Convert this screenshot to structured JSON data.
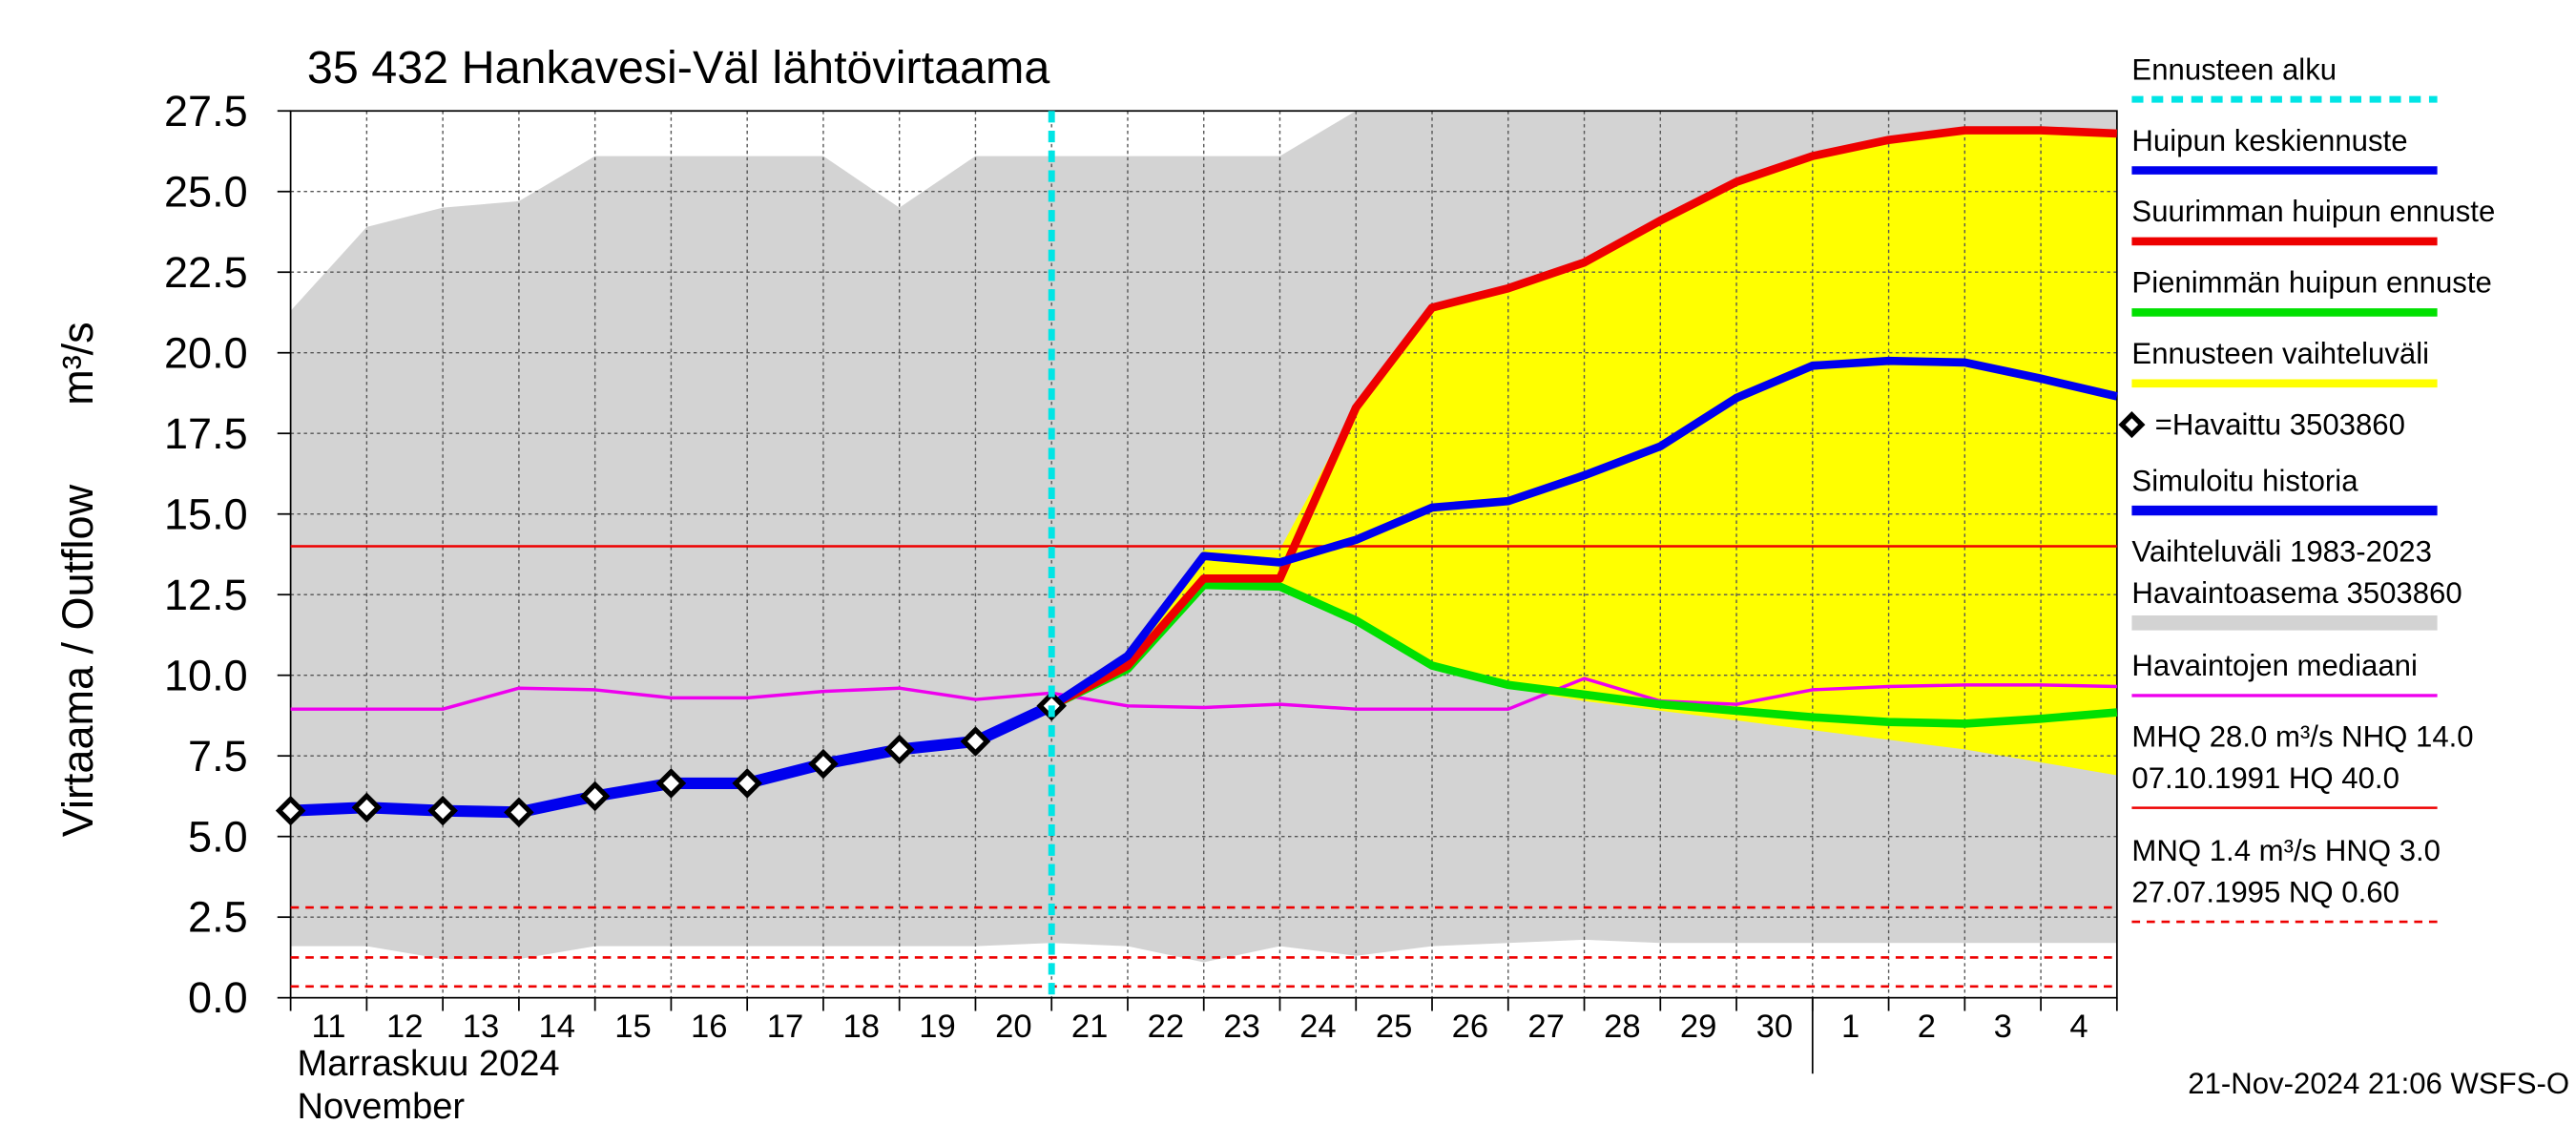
{
  "chart_data": {
    "type": "line",
    "title": "35 432 Hankavesi-Väl lähtövirtaama",
    "ylabel": "Virtaama / Outflow",
    "yunit": "m³/s",
    "month_label": "Marraskuu 2024",
    "month_label_en": "November",
    "footer": "21-Nov-2024 21:06 WSFS-O",
    "categories": [
      "11",
      "12",
      "13",
      "14",
      "15",
      "16",
      "17",
      "18",
      "19",
      "20",
      "21",
      "22",
      "23",
      "24",
      "25",
      "26",
      "27",
      "28",
      "29",
      "30",
      "1",
      "2",
      "3",
      "4"
    ],
    "x": [
      0,
      1,
      2,
      3,
      4,
      5,
      6,
      7,
      8,
      9,
      10,
      11,
      12,
      13,
      14,
      15,
      16,
      17,
      18,
      19,
      20,
      21,
      22,
      23,
      24
    ],
    "xlim": [
      0,
      24
    ],
    "month_break": 20,
    "ylim": [
      0,
      27.5
    ],
    "yticks": [
      {
        "value": 0,
        "label": "0.0"
      },
      2.5,
      {
        "value": 5,
        "label": "5.0"
      },
      7.5,
      {
        "value": 10,
        "label": "10.0"
      },
      12.5,
      {
        "value": 15,
        "label": "15.0"
      },
      17.5,
      {
        "value": 20,
        "label": "20.0"
      },
      22.5,
      {
        "value": 25,
        "label": "25.0"
      },
      27.5
    ],
    "grid": true,
    "series": [
      {
        "name": [
          "Ennusteen alku"
        ],
        "kind": "vline",
        "color": "#00e5e5",
        "value": 10
      },
      {
        "name": [
          "Huipun keskiennuste"
        ],
        "kind": "line",
        "color": "#0000ee",
        "width": 5,
        "values": [
          null,
          null,
          null,
          null,
          null,
          null,
          null,
          null,
          null,
          null,
          9.05,
          10.6,
          13.7,
          13.5,
          14.2,
          15.2,
          15.4,
          16.2,
          17.1,
          18.6,
          19.6,
          19.75,
          19.7,
          19.2,
          18.65
        ]
      },
      {
        "name": [
          "Suurimman huipun ennuste"
        ],
        "kind": "line",
        "color": "#ee0000",
        "width": 5,
        "values": [
          null,
          null,
          null,
          null,
          null,
          null,
          null,
          null,
          null,
          null,
          9.05,
          10.3,
          13.0,
          13.0,
          18.3,
          21.4,
          22.0,
          22.8,
          24.1,
          25.3,
          26.1,
          26.6,
          26.9,
          26.9,
          26.8
        ]
      },
      {
        "name": [
          "Pienimmän huipun ennuste"
        ],
        "kind": "line",
        "color": "#00e000",
        "width": 5,
        "values": [
          null,
          null,
          null,
          null,
          null,
          null,
          null,
          null,
          null,
          null,
          9.05,
          10.2,
          12.8,
          12.75,
          11.7,
          10.3,
          9.7,
          9.4,
          9.1,
          8.9,
          8.7,
          8.55,
          8.5,
          8.65,
          8.85
        ]
      },
      {
        "name": [
          "Ennusteen vaihteluväli"
        ],
        "kind": "band",
        "color": "#ffff00",
        "upper": [
          null,
          null,
          null,
          null,
          null,
          null,
          null,
          null,
          null,
          null,
          9.05,
          10.3,
          13.9,
          13.9,
          18.3,
          21.4,
          22.0,
          22.8,
          24.1,
          25.3,
          26.1,
          26.6,
          26.9,
          26.9,
          26.8
        ],
        "lower": [
          null,
          null,
          null,
          null,
          null,
          null,
          null,
          null,
          null,
          null,
          9.05,
          10.2,
          12.8,
          12.75,
          11.7,
          10.3,
          9.6,
          9.2,
          8.9,
          8.6,
          8.3,
          8.0,
          7.7,
          7.3,
          6.9
        ]
      },
      {
        "name": [
          "=Havaittu 3503860"
        ],
        "kind": "marker",
        "color": "#000000",
        "values": [
          5.8,
          5.9,
          5.8,
          5.75,
          6.25,
          6.65,
          6.65,
          7.25,
          7.7,
          7.95,
          9.05,
          null,
          null,
          null,
          null,
          null,
          null,
          null,
          null,
          null,
          null,
          null,
          null,
          null,
          null
        ]
      },
      {
        "name": [
          "Simuloitu historia"
        ],
        "kind": "line",
        "color": "#0000ee",
        "width": 7,
        "values": [
          5.8,
          5.9,
          5.8,
          5.75,
          6.25,
          6.65,
          6.65,
          7.25,
          7.7,
          7.95,
          9.05,
          null,
          null,
          null,
          null,
          null,
          null,
          null,
          null,
          null,
          null,
          null,
          null,
          null,
          null
        ]
      },
      {
        "name": [
          "Vaihteluväli 1983-2023",
          " Havaintoasema 3503860"
        ],
        "kind": "band",
        "color": "#d3d3d3",
        "upper": [
          21.3,
          23.9,
          24.5,
          24.7,
          26.1,
          26.1,
          26.1,
          26.1,
          24.5,
          26.1,
          26.1,
          26.1,
          26.1,
          26.1,
          27.5,
          27.5,
          27.5,
          27.5,
          27.5,
          27.5,
          27.5,
          27.5,
          27.5,
          27.5,
          27.5
        ],
        "lower": [
          1.6,
          1.6,
          1.2,
          1.2,
          1.6,
          1.6,
          1.6,
          1.6,
          1.6,
          1.6,
          1.7,
          1.6,
          1.1,
          1.6,
          1.3,
          1.6,
          1.7,
          1.8,
          1.7,
          1.7,
          1.7,
          1.7,
          1.7,
          1.7,
          1.7
        ]
      },
      {
        "name": [
          "Havaintojen mediaani"
        ],
        "kind": "line",
        "color": "#ee00ee",
        "width": 2,
        "values": [
          8.95,
          8.95,
          8.95,
          9.6,
          9.55,
          9.3,
          9.3,
          9.5,
          9.6,
          9.25,
          9.45,
          9.05,
          9.0,
          9.1,
          8.95,
          8.95,
          8.95,
          9.9,
          9.2,
          9.1,
          9.55,
          9.65,
          9.7,
          9.7,
          9.65
        ]
      },
      {
        "name": [
          "MHQ 28.0 m³/s NHQ 14.0",
          "07.10.1991 HQ 40.0"
        ],
        "kind": "hline",
        "color": "#ee0000",
        "dashed": false,
        "value": 14.0
      },
      {
        "name": [
          "MNQ  1.4 m³/s HNQ  3.0",
          "27.07.1995 NQ 0.60"
        ],
        "kind": "hline",
        "color": "#ee0000",
        "dashed": true,
        "value": 2.8
      },
      {
        "kind": "hline",
        "color": "#ee0000",
        "dashed": true,
        "value": 1.25
      },
      {
        "kind": "hline",
        "color": "#ee0000",
        "dashed": true,
        "value": 0.35
      }
    ]
  }
}
